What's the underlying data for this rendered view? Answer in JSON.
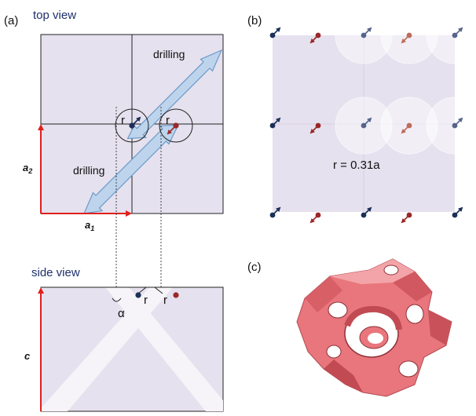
{
  "panels": {
    "a": "(a)",
    "b": "(b)",
    "c": "(c)"
  },
  "headings": {
    "top_view": "top view",
    "side_view": "side view"
  },
  "top_view": {
    "drilling_upper": "drilling",
    "drilling_lower": "drilling",
    "r_left": "r",
    "r_right": "r",
    "axis_a2": "a",
    "axis_a2_sub": "2",
    "axis_a1": "a",
    "axis_a1_sub": "1"
  },
  "side_view": {
    "axis_c": "c",
    "alpha": "α",
    "r_left": "r",
    "r_right": "r"
  },
  "panel_b": {
    "radius_label": "r = 0.31a"
  },
  "colors": {
    "cell_fill": "#e6e1ee",
    "arrow_blue": "#bdd4ec",
    "axis_red": "#e0201c",
    "dot_navy": "#1b2f57",
    "dot_red": "#9a2828",
    "model_pink": "#e8767c"
  }
}
